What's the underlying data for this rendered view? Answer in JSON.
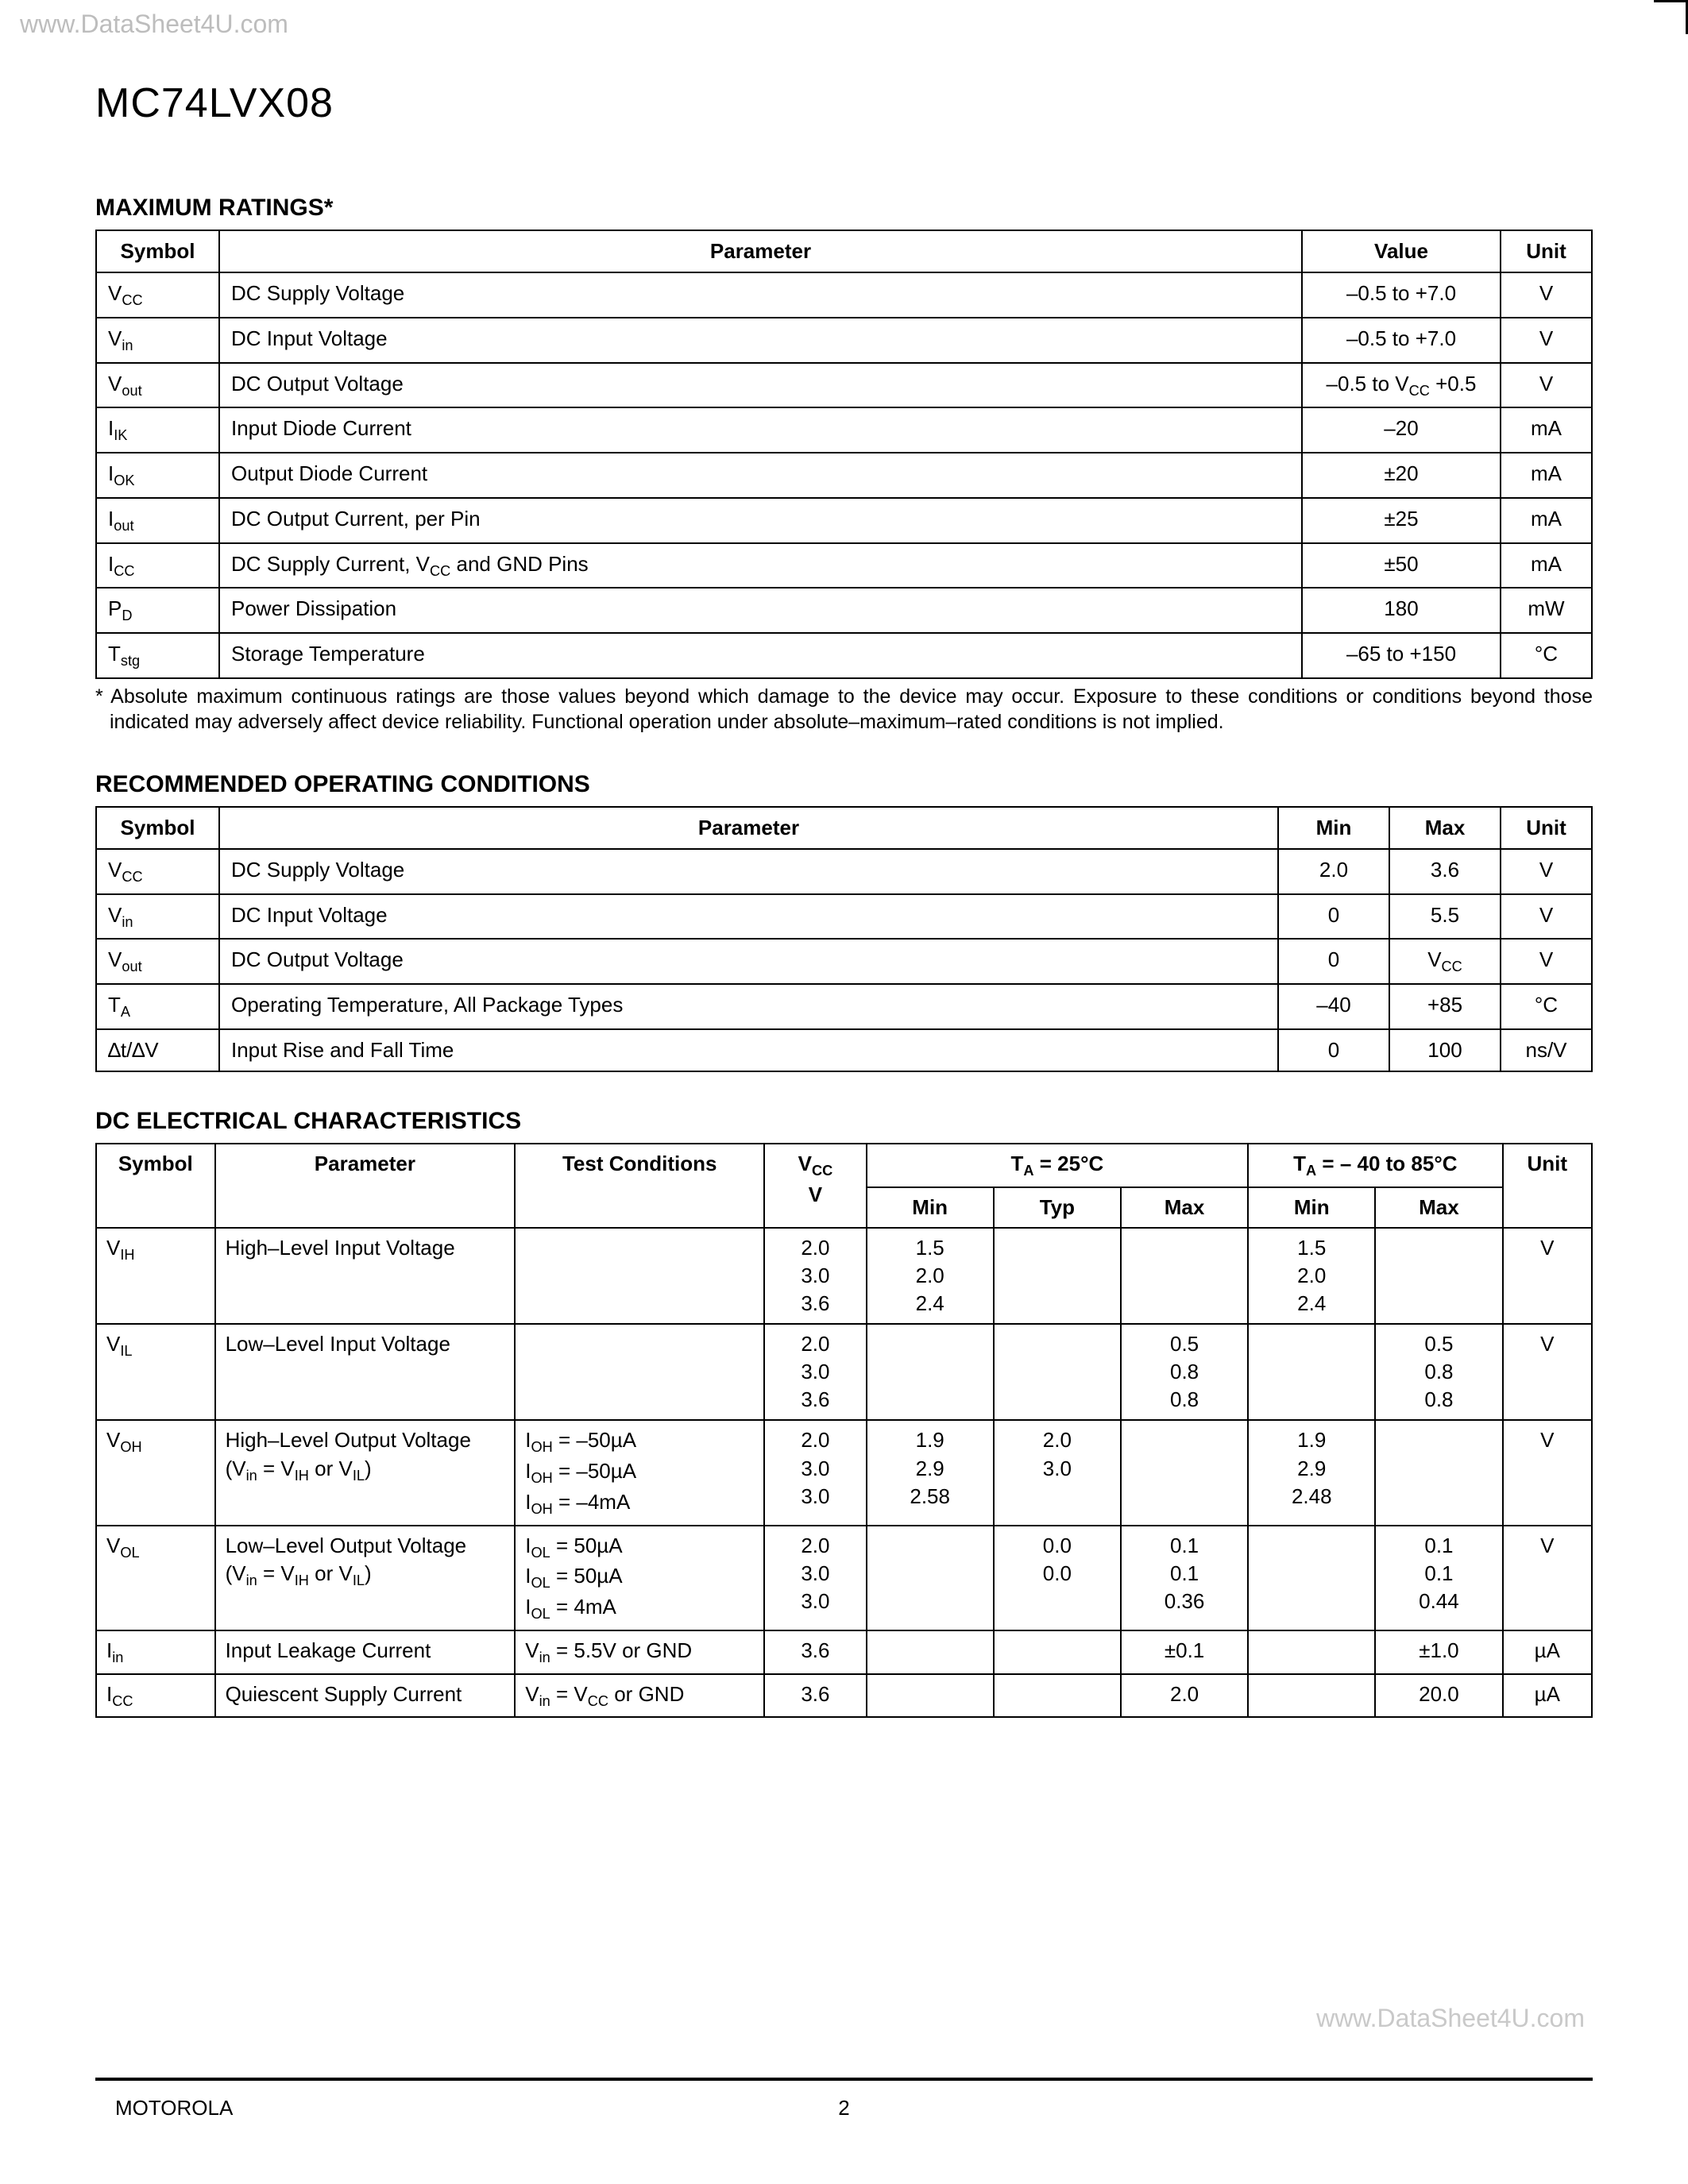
{
  "watermark_top": "www.DataSheet4U.com",
  "watermark_bottom": "www.DataSheet4U.com",
  "part_number": "MC74LVX08",
  "footer_left": "MOTOROLA",
  "footer_page": "2",
  "tables": {
    "max_ratings": {
      "title": "MAXIMUM RATINGS*",
      "headers": [
        "Symbol",
        "Parameter",
        "Value",
        "Unit"
      ],
      "rows": [
        {
          "symbol_html": "V<sub>CC</sub>",
          "parameter": "DC Supply Voltage",
          "value": "–0.5 to +7.0",
          "unit": "V"
        },
        {
          "symbol_html": "V<sub>in</sub>",
          "parameter": "DC Input Voltage",
          "value": "–0.5 to +7.0",
          "unit": "V"
        },
        {
          "symbol_html": "V<sub>out</sub>",
          "parameter": "DC Output Voltage",
          "value_html": "–0.5 to V<sub>CC</sub> +0.5",
          "unit": "V"
        },
        {
          "symbol_html": "I<sub>IK</sub>",
          "parameter": "Input Diode Current",
          "value": "–20",
          "unit": "mA"
        },
        {
          "symbol_html": "I<sub>OK</sub>",
          "parameter": "Output Diode Current",
          "value": "±20",
          "unit": "mA"
        },
        {
          "symbol_html": "I<sub>out</sub>",
          "parameter": "DC Output Current, per Pin",
          "value": "±25",
          "unit": "mA"
        },
        {
          "symbol_html": "I<sub>CC</sub>",
          "parameter_html": "DC Supply Current, V<sub>CC</sub> and GND Pins",
          "value": "±50",
          "unit": "mA"
        },
        {
          "symbol_html": "P<sub>D</sub>",
          "parameter": "Power Dissipation",
          "value": "180",
          "unit": "mW"
        },
        {
          "symbol_html": "T<sub>stg</sub>",
          "parameter": "Storage Temperature",
          "value": "–65 to +150",
          "unit": "°C"
        }
      ],
      "footnote": "* Absolute maximum continuous ratings are those values beyond which damage to the device may occur. Exposure to these conditions or conditions beyond those indicated may adversely affect device reliability. Functional operation under absolute–maximum–rated conditions is not implied."
    },
    "operating": {
      "title": "RECOMMENDED OPERATING CONDITIONS",
      "headers": [
        "Symbol",
        "Parameter",
        "Min",
        "Max",
        "Unit"
      ],
      "rows": [
        {
          "symbol_html": "V<sub>CC</sub>",
          "parameter": "DC Supply Voltage",
          "min": "2.0",
          "max": "3.6",
          "unit": "V"
        },
        {
          "symbol_html": "V<sub>in</sub>",
          "parameter": "DC Input Voltage",
          "min": "0",
          "max": "5.5",
          "unit": "V"
        },
        {
          "symbol_html": "V<sub>out</sub>",
          "parameter": "DC Output Voltage",
          "min": "0",
          "max_html": "V<sub>CC</sub>",
          "unit": "V"
        },
        {
          "symbol_html": "T<sub>A</sub>",
          "parameter": "Operating Temperature, All Package Types",
          "min": "–40",
          "max": "+85",
          "unit": "°C"
        },
        {
          "symbol_html": "∆t/∆V",
          "parameter": "Input Rise and Fall Time",
          "min": "0",
          "max": "100",
          "unit": "ns/V"
        }
      ]
    },
    "dc": {
      "title": "DC ELECTRICAL CHARACTERISTICS",
      "header_group_25": "T<sub>A</sub> = 25°C",
      "header_group_range": "T<sub>A</sub> = – 40 to 85°C",
      "headers": [
        "Symbol",
        "Parameter",
        "Test Conditions",
        "V<sub>CC</sub><br>V",
        "Min",
        "Typ",
        "Max",
        "Min",
        "Max",
        "Unit"
      ],
      "rows": [
        {
          "symbol_html": "V<sub>IH</sub>",
          "parameter": "High–Level Input Voltage",
          "test": "",
          "vcc": "2.0\n3.0\n3.6",
          "min25": "1.5\n2.0\n2.4",
          "typ25": "",
          "max25": "",
          "minr": "1.5\n2.0\n2.4",
          "maxr": "",
          "unit": "V"
        },
        {
          "symbol_html": "V<sub>IL</sub>",
          "parameter": "Low–Level Input Voltage",
          "test": "",
          "vcc": "2.0\n3.0\n3.6",
          "min25": "",
          "typ25": "",
          "max25": "0.5\n0.8\n0.8",
          "minr": "",
          "maxr": "0.5\n0.8\n0.8",
          "unit": "V"
        },
        {
          "symbol_html": "V<sub>OH</sub>",
          "parameter_html": "High–Level Output Voltage<br>(V<sub>in</sub> = V<sub>IH</sub> or V<sub>IL</sub>)",
          "test_html": "I<sub>OH</sub> = –50µA<br>I<sub>OH</sub> = –50µA<br>I<sub>OH</sub> = –4mA",
          "vcc": "2.0\n3.0\n3.0",
          "min25": "1.9\n2.9\n2.58",
          "typ25": "2.0\n3.0",
          "max25": "",
          "minr": "1.9\n2.9\n2.48",
          "maxr": "",
          "unit": "V"
        },
        {
          "symbol_html": "V<sub>OL</sub>",
          "parameter_html": "Low–Level Output Voltage<br>(V<sub>in</sub> = V<sub>IH</sub> or V<sub>IL</sub>)",
          "test_html": "I<sub>OL</sub> = 50µA<br>I<sub>OL</sub> = 50µA<br>I<sub>OL</sub> = 4mA",
          "vcc": "2.0\n3.0\n3.0",
          "min25": "",
          "typ25": "0.0\n0.0",
          "max25": "0.1\n0.1\n0.36",
          "minr": "",
          "maxr": "0.1\n0.1\n0.44",
          "unit": "V"
        },
        {
          "symbol_html": "I<sub>in</sub>",
          "parameter": "Input Leakage Current",
          "test_html": "V<sub>in</sub> = 5.5V or GND",
          "vcc": "3.6",
          "min25": "",
          "typ25": "",
          "max25": "±0.1",
          "minr": "",
          "maxr": "±1.0",
          "unit": "µA"
        },
        {
          "symbol_html": "I<sub>CC</sub>",
          "parameter": "Quiescent Supply Current",
          "test_html": "V<sub>in</sub> = V<sub>CC</sub> or GND",
          "vcc": "3.6",
          "min25": "",
          "typ25": "",
          "max25": "2.0",
          "minr": "",
          "maxr": "20.0",
          "unit": "µA"
        }
      ]
    }
  }
}
